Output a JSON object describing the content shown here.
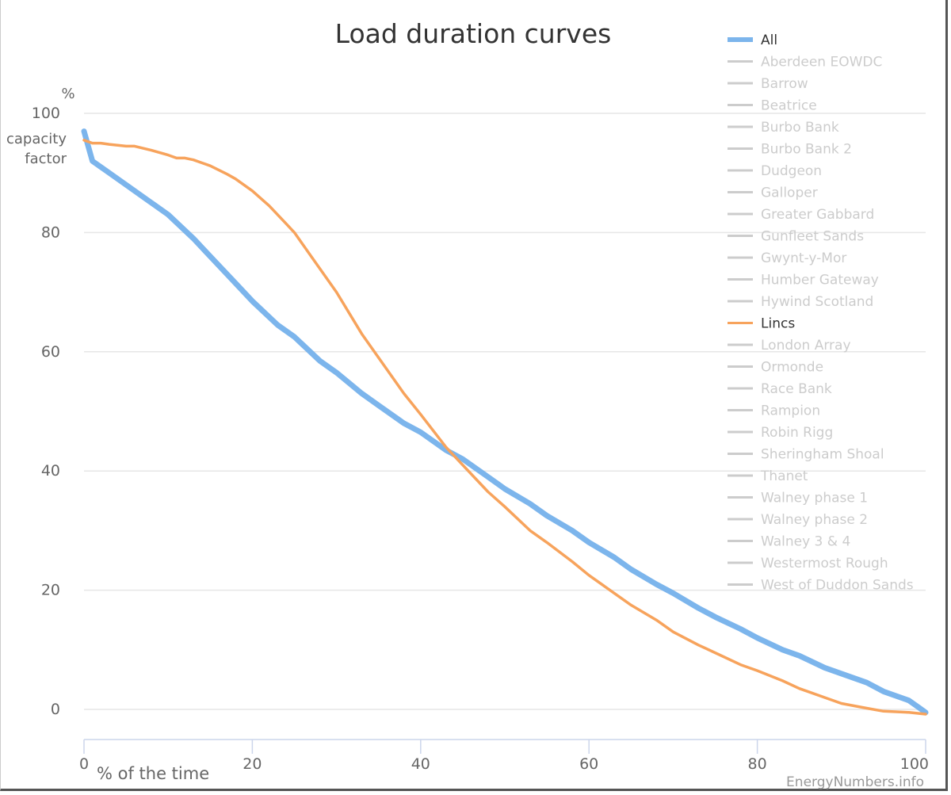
{
  "chart_data": {
    "type": "line",
    "title": "Load duration curves",
    "xlabel": "% of the time",
    "ylabel_unit": "%",
    "ylabel": "capacity factor",
    "xlim": [
      0,
      100
    ],
    "ylim": [
      0,
      100
    ],
    "x_ticks": [
      "0",
      "20",
      "40",
      "60",
      "80",
      "100"
    ],
    "y_ticks": [
      "0",
      "20",
      "40",
      "60",
      "80",
      "100"
    ],
    "grid": true,
    "legend_position": "top-right",
    "credit": "EnergyNumbers.info",
    "series": [
      {
        "name": "All",
        "color": "#7cb5ec",
        "visible": true,
        "x": [
          0,
          1,
          3,
          5,
          8,
          10,
          13,
          15,
          18,
          20,
          23,
          25,
          28,
          30,
          33,
          35,
          38,
          40,
          43,
          45,
          48,
          50,
          53,
          55,
          58,
          60,
          63,
          65,
          68,
          70,
          73,
          75,
          78,
          80,
          83,
          85,
          88,
          90,
          93,
          95,
          98,
          99,
          100
        ],
        "y": [
          97,
          92,
          90,
          88,
          85,
          83,
          79,
          76,
          71.5,
          68.5,
          64.5,
          62.5,
          58.5,
          56.5,
          53,
          51,
          48,
          46.5,
          43.5,
          42,
          39,
          37,
          34.5,
          32.5,
          30,
          28,
          25.5,
          23.5,
          21,
          19.5,
          17,
          15.5,
          13.5,
          12,
          10,
          9,
          7,
          6,
          4.5,
          3,
          1.5,
          0.5,
          -0.5
        ]
      },
      {
        "name": "Lincs",
        "color": "#f7a35c",
        "visible": true,
        "x": [
          0,
          1,
          2,
          3,
          5,
          6,
          8,
          10,
          11,
          12,
          13,
          15,
          17,
          18,
          20,
          22,
          24,
          25,
          27,
          30,
          33,
          35,
          38,
          40,
          43,
          45,
          48,
          50,
          53,
          55,
          58,
          60,
          63,
          65,
          68,
          70,
          73,
          75,
          78,
          80,
          83,
          85,
          88,
          90,
          93,
          95,
          98,
          100
        ],
        "y": [
          95.5,
          95,
          95,
          94.8,
          94.5,
          94.5,
          93.8,
          93,
          92.5,
          92.5,
          92.2,
          91.2,
          89.8,
          89,
          87,
          84.5,
          81.5,
          80,
          76,
          70,
          63,
          59,
          53,
          49.5,
          44,
          41,
          36.5,
          34,
          30,
          28,
          24.8,
          22.5,
          19.5,
          17.5,
          15,
          13,
          10.8,
          9.5,
          7.5,
          6.5,
          4.8,
          3.5,
          2,
          1,
          0.2,
          -0.3,
          -0.5,
          -0.8
        ]
      }
    ],
    "legend": [
      {
        "name": "All",
        "active": true,
        "color": "#7cb5ec"
      },
      {
        "name": "Aberdeen EOWDC",
        "active": false
      },
      {
        "name": "Barrow",
        "active": false
      },
      {
        "name": "Beatrice",
        "active": false
      },
      {
        "name": "Burbo Bank",
        "active": false
      },
      {
        "name": "Burbo Bank 2",
        "active": false
      },
      {
        "name": "Dudgeon",
        "active": false
      },
      {
        "name": "Galloper",
        "active": false
      },
      {
        "name": "Greater Gabbard",
        "active": false
      },
      {
        "name": "Gunfleet Sands",
        "active": false
      },
      {
        "name": "Gwynt-y-Mor",
        "active": false
      },
      {
        "name": "Humber Gateway",
        "active": false
      },
      {
        "name": "Hywind Scotland",
        "active": false
      },
      {
        "name": "Lincs",
        "active": true,
        "color": "#f7a35c"
      },
      {
        "name": "London Array",
        "active": false
      },
      {
        "name": "Ormonde",
        "active": false
      },
      {
        "name": "Race Bank",
        "active": false
      },
      {
        "name": "Rampion",
        "active": false
      },
      {
        "name": "Robin Rigg",
        "active": false
      },
      {
        "name": "Sheringham Shoal",
        "active": false
      },
      {
        "name": "Thanet",
        "active": false
      },
      {
        "name": "Walney phase 1",
        "active": false
      },
      {
        "name": "Walney phase 2",
        "active": false
      },
      {
        "name": "Walney 3 & 4",
        "active": false
      },
      {
        "name": "Westermost Rough",
        "active": false
      },
      {
        "name": "West of Duddon Sands",
        "active": false
      }
    ]
  }
}
